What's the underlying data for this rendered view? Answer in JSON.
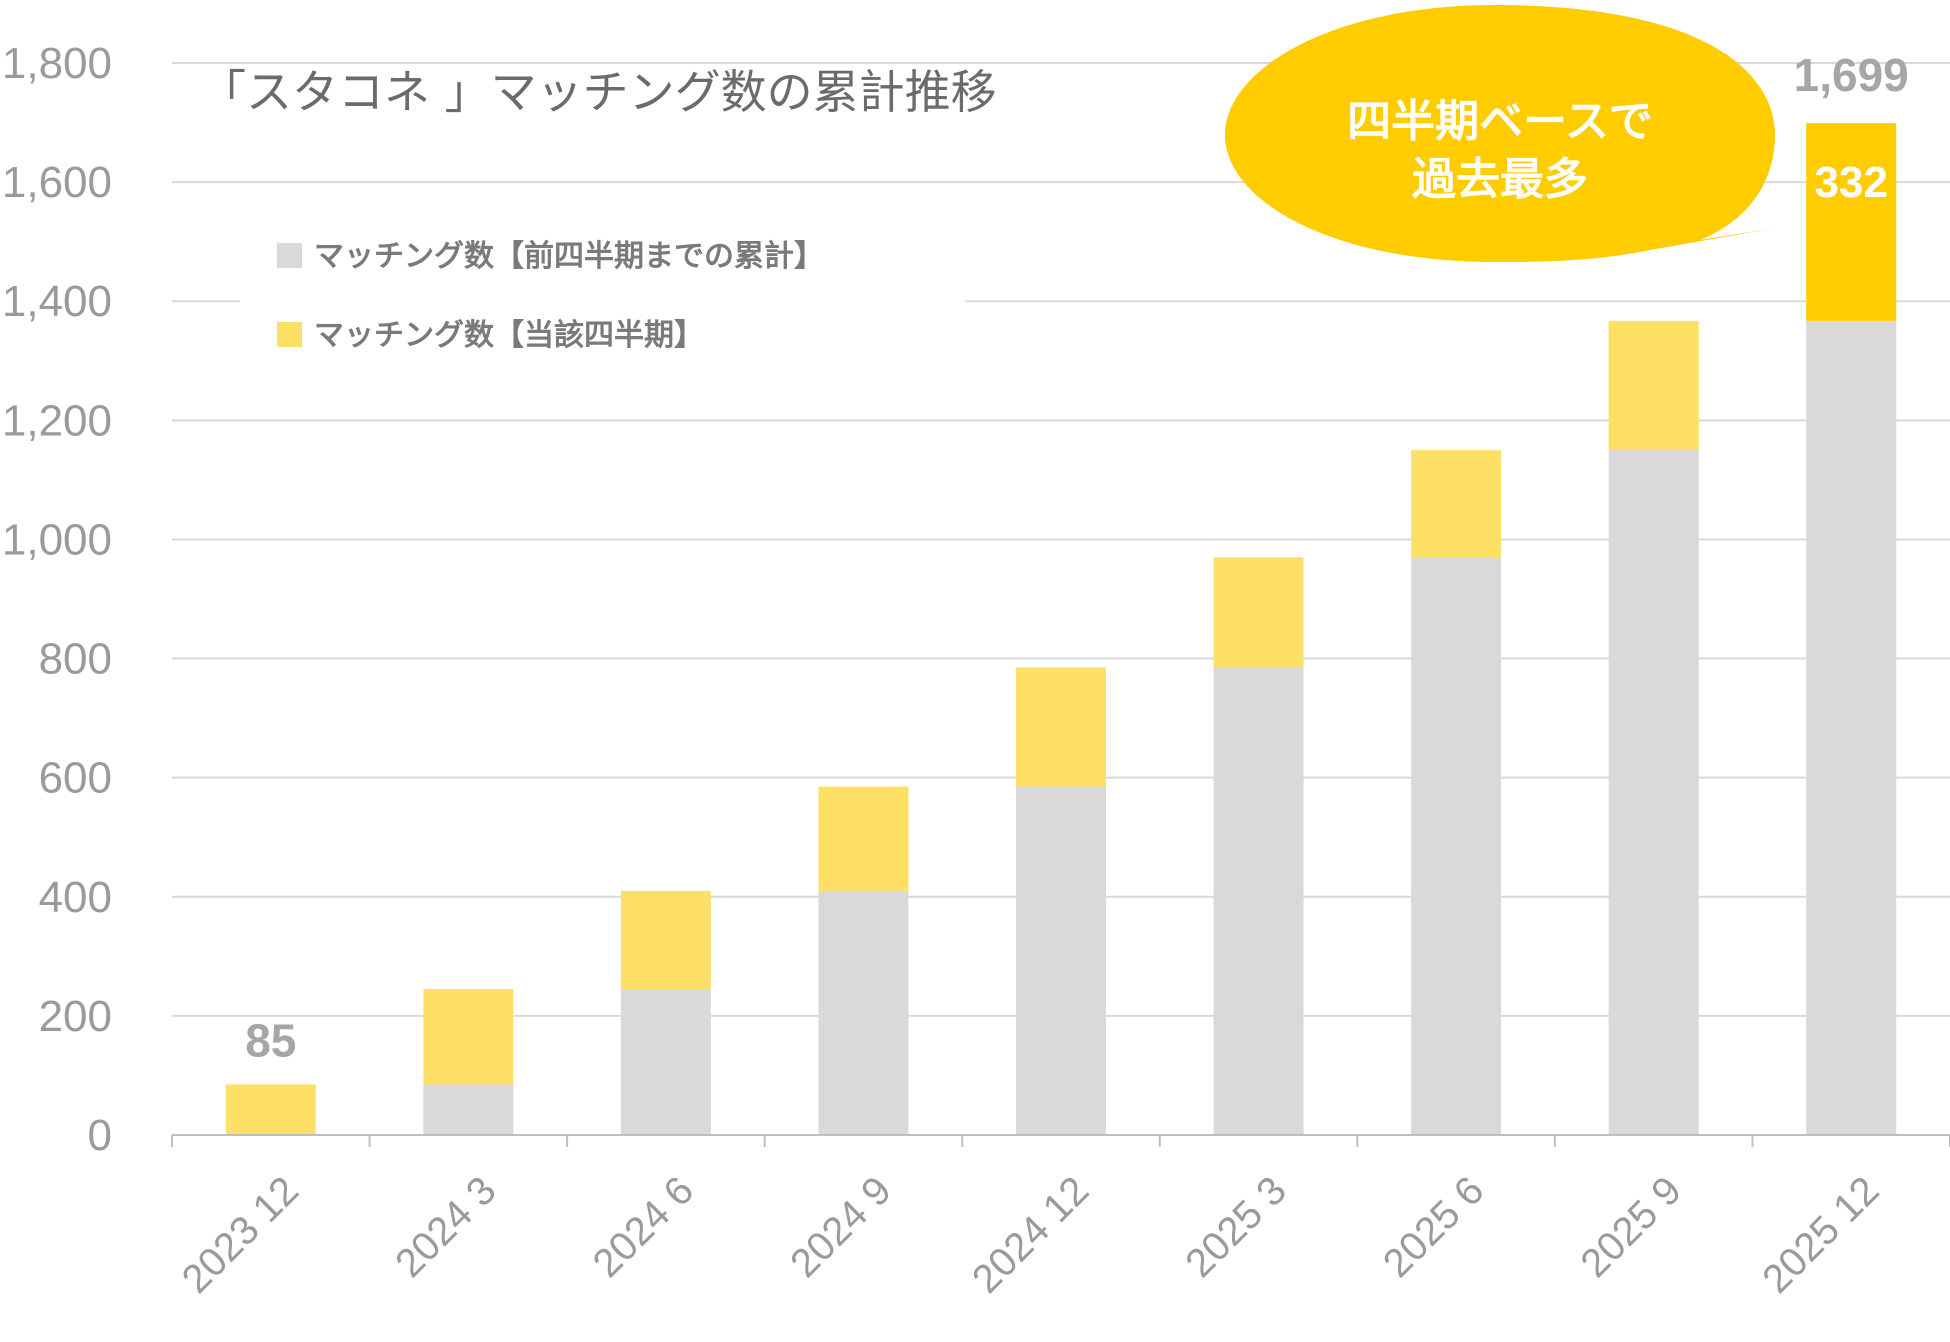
{
  "chart_data": {
    "type": "bar",
    "stacked": true,
    "title": "「スタコネ 」マッチング数の累計推移",
    "xlabel": "",
    "ylabel": "",
    "ylim": [
      0,
      1800
    ],
    "yticks": [
      "0",
      "200",
      "400",
      "600",
      "800",
      "1,000",
      "1,200",
      "1,400",
      "1,600",
      "1,800"
    ],
    "grid": true,
    "legend_position": "top-left",
    "categories": [
      "2023 12",
      "2024 3",
      "2024 6",
      "2024 9",
      "2024 12",
      "2025 3",
      "2025 6",
      "2025 9",
      "2025 12"
    ],
    "series": [
      {
        "name": "マッチング数【前四半期までの累計】",
        "color": "#d9d9d9",
        "values": [
          0,
          85,
          245,
          410,
          585,
          785,
          970,
          1150,
          1367
        ]
      },
      {
        "name": "マッチング数【当該四半期】",
        "color": "#ffe066",
        "values": [
          85,
          160,
          165,
          175,
          200,
          185,
          180,
          217,
          332
        ]
      }
    ],
    "annotations": {
      "first_total": "85",
      "last_total": "1,699",
      "last_segment": "332",
      "callout": [
        "四半期ベースで",
        "過去最多"
      ]
    },
    "colors": {
      "highlight_segment": "#ffcc00",
      "callout_fill": "#ffcc00",
      "grid": "#d9d9d9",
      "axis_text": "#9a9a9a"
    }
  }
}
